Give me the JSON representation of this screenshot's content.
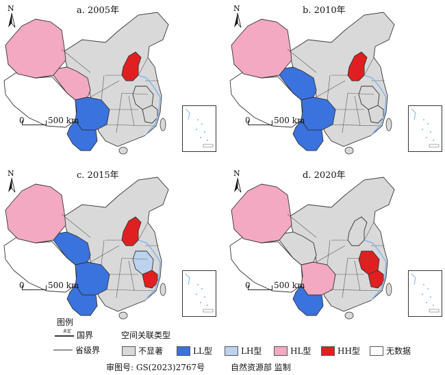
{
  "colors": {
    "not_significant": "#d9d9d9",
    "LL": "#3a73de",
    "LH": "#bcd3ee",
    "HL": "#f3a9c2",
    "HH": "#e02020",
    "no_data": "#ffffff",
    "water": "#7fb4ea",
    "border": "#333333"
  },
  "panels": [
    {
      "title": "a. 2005年",
      "scale_zero": "0",
      "scale_label": "500 km",
      "regions": {
        "xinjiang": "HL",
        "tibet": "no_data",
        "qinghai": "HL",
        "gansu": "not_significant",
        "sichuan": "LL",
        "yunnan": "LL",
        "beijing_hebei": "HH",
        "jiangsu_anhui": "not_significant",
        "shanghai_zhejiang": "not_significant",
        "others": "not_significant"
      }
    },
    {
      "title": "b. 2010年",
      "scale_zero": "0",
      "scale_label": "500 km",
      "regions": {
        "xinjiang": "HL",
        "tibet": "no_data",
        "qinghai": "LL",
        "gansu": "not_significant",
        "sichuan": "LL",
        "yunnan": "LL",
        "beijing_hebei": "HH",
        "jiangsu_anhui": "not_significant",
        "shanghai_zhejiang": "not_significant",
        "others": "not_significant"
      }
    },
    {
      "title": "c. 2015年",
      "scale_zero": "0",
      "scale_label": "500 km",
      "regions": {
        "xinjiang": "HL",
        "tibet": "no_data",
        "qinghai": "LL",
        "gansu": "not_significant",
        "sichuan": "LL",
        "yunnan": "LL",
        "beijing_hebei": "HH",
        "jiangsu_anhui": "LH",
        "shanghai_zhejiang": "HH",
        "others": "not_significant"
      }
    },
    {
      "title": "d. 2020年",
      "scale_zero": "0",
      "scale_label": "500 km",
      "regions": {
        "xinjiang": "HL",
        "tibet": "no_data",
        "qinghai": "not_significant",
        "gansu": "not_significant",
        "sichuan": "HL",
        "yunnan": "LL",
        "beijing_hebei": "not_significant",
        "jiangsu_anhui": "HH",
        "shanghai_zhejiang": "HH",
        "others": "not_significant"
      }
    }
  ],
  "legend": {
    "title": "图例",
    "undetermined_label": "未定",
    "national_border": "国界",
    "provincial_border": "省级界",
    "type_title": "空间关联类型",
    "items": [
      {
        "key": "not_significant",
        "label": "不显著"
      },
      {
        "key": "LL",
        "label": "LL型"
      },
      {
        "key": "LH",
        "label": "LH型"
      },
      {
        "key": "HL",
        "label": "HL型"
      },
      {
        "key": "HH",
        "label": "HH型"
      },
      {
        "key": "no_data",
        "label": "无数据"
      }
    ],
    "review_no": "审图号: GS(2023)2767号",
    "supervisor": "自然资源部 监制"
  }
}
